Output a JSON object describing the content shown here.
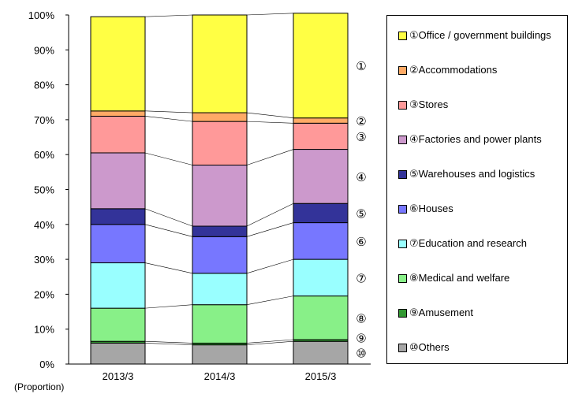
{
  "chart_data": {
    "type": "bar",
    "stacked": true,
    "categories": [
      "2013/3",
      "2014/3",
      "2015/3"
    ],
    "series": [
      {
        "name": "⑩Others",
        "marker": "⑩",
        "color": "#a6a6a6",
        "values": [
          6,
          5.5,
          6.5
        ]
      },
      {
        "name": "⑨Amusement",
        "marker": "⑨",
        "color": "#339933",
        "values": [
          0.5,
          0.5,
          0.5
        ]
      },
      {
        "name": "⑧Medical and welfare",
        "marker": "⑧",
        "color": "#88f088",
        "values": [
          9.5,
          11,
          12.5
        ]
      },
      {
        "name": "⑦Education and research",
        "marker": "⑦",
        "color": "#99ffff",
        "values": [
          13,
          9,
          10.5
        ]
      },
      {
        "name": "⑥Houses",
        "marker": "⑥",
        "color": "#7777ff",
        "values": [
          11,
          10.5,
          10.5
        ]
      },
      {
        "name": "⑤Warehouses and logistics",
        "marker": "⑤",
        "color": "#333399",
        "values": [
          4.5,
          3,
          5.5
        ]
      },
      {
        "name": "④Factories and power plants",
        "marker": "④",
        "color": "#cc99cc",
        "values": [
          16,
          17.5,
          15.5
        ]
      },
      {
        "name": "③Stores",
        "marker": "③",
        "color": "#ff9999",
        "values": [
          10.5,
          12.5,
          7.5
        ]
      },
      {
        "name": "②Accommodations",
        "marker": "②",
        "color": "#ffaa66",
        "values": [
          1.5,
          2.5,
          1.5
        ]
      },
      {
        "name": "①Office / government buildings",
        "marker": "①",
        "color": "#ffff44",
        "values": [
          27,
          28,
          30
        ]
      }
    ],
    "ylim": [
      0,
      100
    ],
    "yticks": [
      "0%",
      "10%",
      "20%",
      "30%",
      "40%",
      "50%",
      "60%",
      "70%",
      "80%",
      "90%",
      "100%"
    ],
    "unit_label": "(Proportion)",
    "legend_position": "right",
    "grid": false,
    "connector_lines": true
  }
}
